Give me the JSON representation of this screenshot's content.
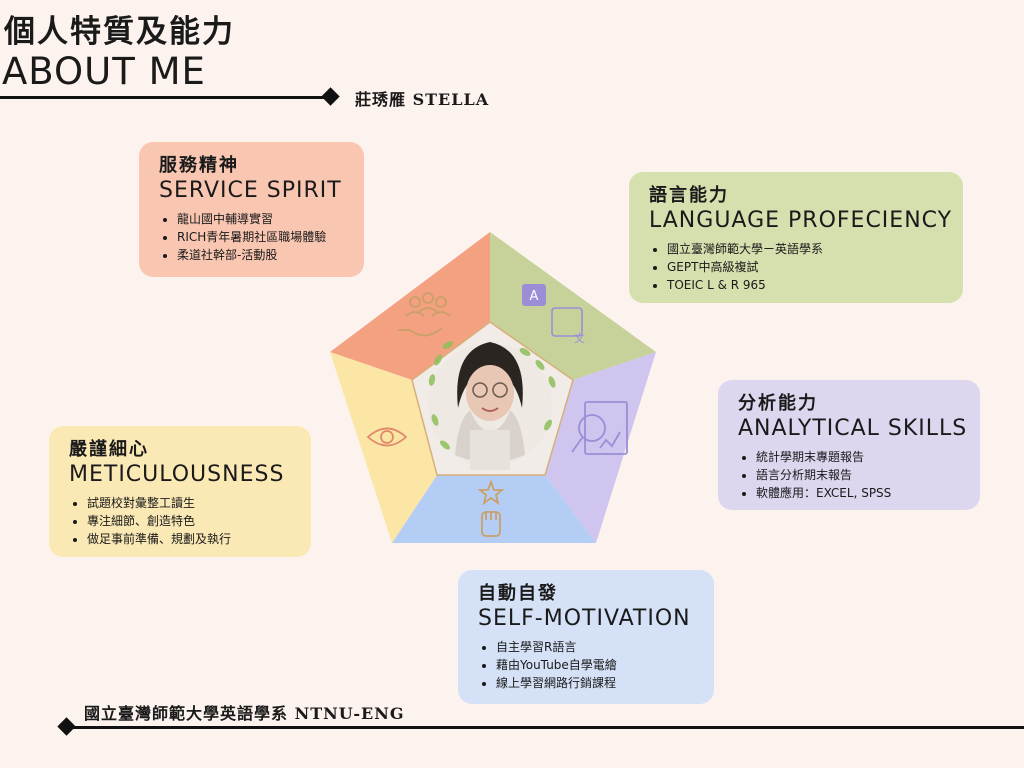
{
  "header": {
    "title_zh": "個人特質及能力",
    "title_en": "ABOUT ME",
    "author": "莊琇雁 STELLA"
  },
  "footer": {
    "school": "國立臺灣師範大學英語學系 NTNU-ENG"
  },
  "cards": {
    "service": {
      "zh": "服務精神",
      "en": "SERVICE SPIRIT",
      "items": [
        "龍山國中輔導實習",
        "RICH青年暑期社區職場體驗",
        "柔道社幹部-活動股"
      ]
    },
    "language": {
      "zh": "語言能力",
      "en": "LANGUAGE PROFECIENCY",
      "items": [
        "國立臺灣師範大學ㄧ英語學系",
        "GEPT中高級複試",
        "TOEIC L & R 965"
      ]
    },
    "analytical": {
      "zh": "分析能力",
      "en": "ANALYTICAL SKILLS",
      "items": [
        "統計學期末專題報告",
        "語言分析期末報告",
        "軟體應用：EXCEL, SPSS"
      ]
    },
    "meticulous": {
      "zh": "嚴謹細心",
      "en": "METICULOUSNESS",
      "items": [
        "試題校對彙整工讀生",
        "專注細節、創造特色",
        "做足事前準備、規劃及執行"
      ]
    },
    "motivation": {
      "zh": "自動自發",
      "en": "SELF-MOTIVATION",
      "items": [
        "自主學習R語言",
        "藉由YouTube自學電繪",
        "線上學習網路行銷課程"
      ]
    }
  },
  "pentagon_colors": {
    "service": "#f4a182",
    "language": "#c7d29a",
    "analytical": "#cfc5ee",
    "motivation": "#b4cdf5",
    "meticulous": "#fbe6a6",
    "icons": "#caa06a"
  }
}
